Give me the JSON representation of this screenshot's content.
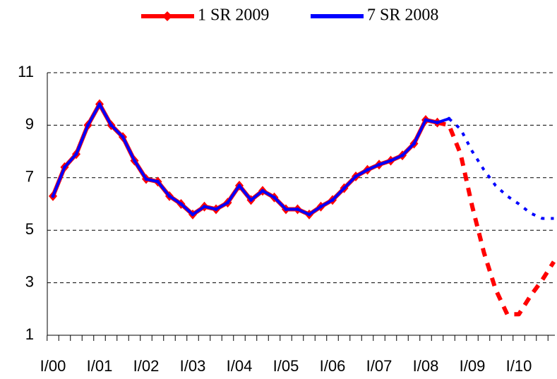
{
  "chart_data": {
    "type": "line",
    "categories": [
      "I/00",
      null,
      null,
      null,
      "I/01",
      null,
      null,
      null,
      "I/02",
      null,
      null,
      null,
      "I/03",
      null,
      null,
      null,
      "I/04",
      null,
      null,
      null,
      "I/05",
      null,
      null,
      null,
      "I/06",
      null,
      null,
      null,
      "I/07",
      null,
      null,
      null,
      "I/08",
      null,
      null,
      null,
      "I/09",
      null,
      null,
      null,
      "I/10",
      null,
      null,
      null
    ],
    "series": [
      {
        "name": "1 SR 2009",
        "color": "#ff0000",
        "dashed_from_index": 33,
        "values": [
          6.3,
          7.4,
          7.9,
          9.0,
          9.8,
          9.0,
          8.55,
          7.65,
          6.95,
          6.85,
          6.3,
          6.0,
          5.6,
          5.9,
          5.8,
          6.05,
          6.7,
          6.15,
          6.5,
          6.25,
          5.8,
          5.8,
          5.6,
          5.9,
          6.15,
          6.6,
          7.05,
          7.3,
          7.5,
          7.65,
          7.85,
          8.3,
          9.2,
          9.1,
          9.0,
          7.9,
          5.9,
          4.15,
          2.75,
          1.8,
          1.8,
          2.5,
          3.1,
          3.8
        ]
      },
      {
        "name": "7 SR 2008",
        "color": "#0000ff",
        "dashed_from_index": 34,
        "values": [
          6.3,
          7.4,
          7.9,
          9.0,
          9.8,
          9.0,
          8.55,
          7.65,
          6.95,
          6.85,
          6.3,
          6.0,
          5.6,
          5.9,
          5.8,
          6.05,
          6.7,
          6.15,
          6.5,
          6.25,
          5.8,
          5.8,
          5.6,
          5.9,
          6.15,
          6.6,
          7.05,
          7.3,
          7.5,
          7.65,
          7.85,
          8.3,
          9.2,
          9.1,
          9.25,
          8.85,
          8.0,
          7.3,
          6.7,
          6.3,
          6.0,
          5.65,
          5.45,
          5.45
        ]
      }
    ],
    "ylim": [
      1,
      11
    ],
    "yticks": [
      1,
      3,
      5,
      7,
      9,
      11
    ],
    "grid": true
  }
}
